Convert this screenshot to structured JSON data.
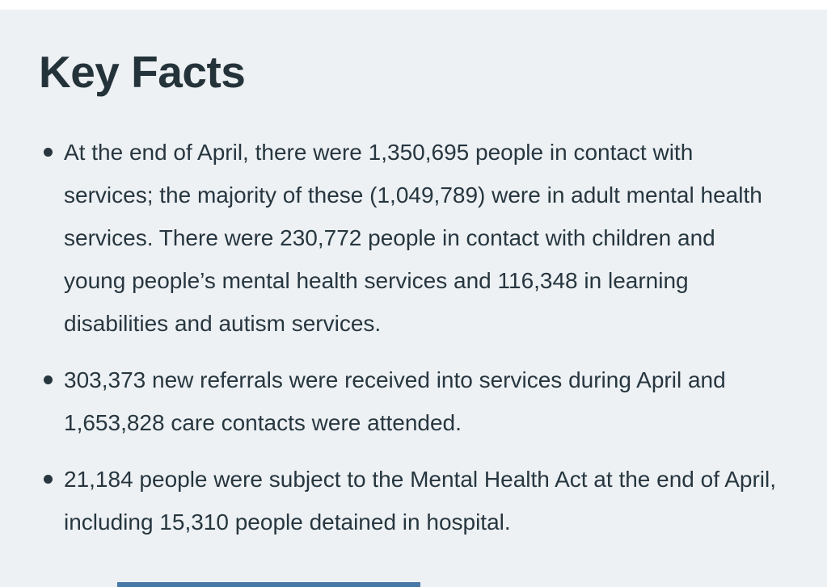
{
  "page": {
    "title": "Key Facts",
    "bullets": [
      "At the end of April, there were 1,350,695 people in contact with services; the majority of these (1,049,789) were in adult mental health services. There were 230,772 people in contact with children and young people’s mental health services and 116,348 in learning disabilities and autism services.",
      "303,373 new referrals were received into services during April and 1,653,828 care contacts were attended.",
      "21,184 people were subject to the Mental Health Act at the end of April, including 15,310 people detained in hospital."
    ],
    "colors": {
      "page_background": "#edf1f4",
      "top_margin": "#ffffff",
      "text": "#27363f",
      "heading": "#243239",
      "accent_bar": "#4878a8"
    }
  }
}
